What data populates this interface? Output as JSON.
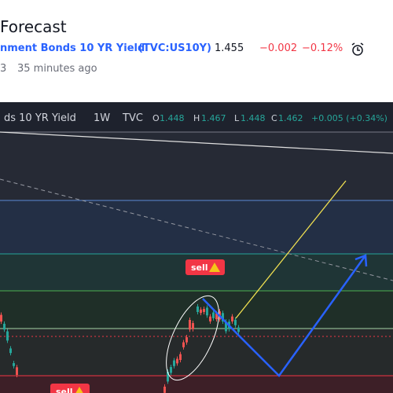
{
  "header": {
    "title": "Forecast",
    "symbol_name": "nment Bonds 10 YR Yield",
    "symbol_code": "(TVC:US10Y)",
    "price": "1.455",
    "change": "−0.002",
    "change_percent": "−0.12%",
    "author_suffix": "3",
    "time_ago": "35 minutes ago"
  },
  "chart_legend": {
    "name": "ds 10 YR Yield",
    "interval": "1W",
    "source": "TVC",
    "open_label": "O",
    "open": "1.448",
    "high_label": "H",
    "high": "1.467",
    "low_label": "L",
    "low": "1.448",
    "close_label": "C",
    "close": "1.462",
    "change": "+0.005 (+0.34%)"
  },
  "labels": [
    "sell",
    "sell"
  ]
}
